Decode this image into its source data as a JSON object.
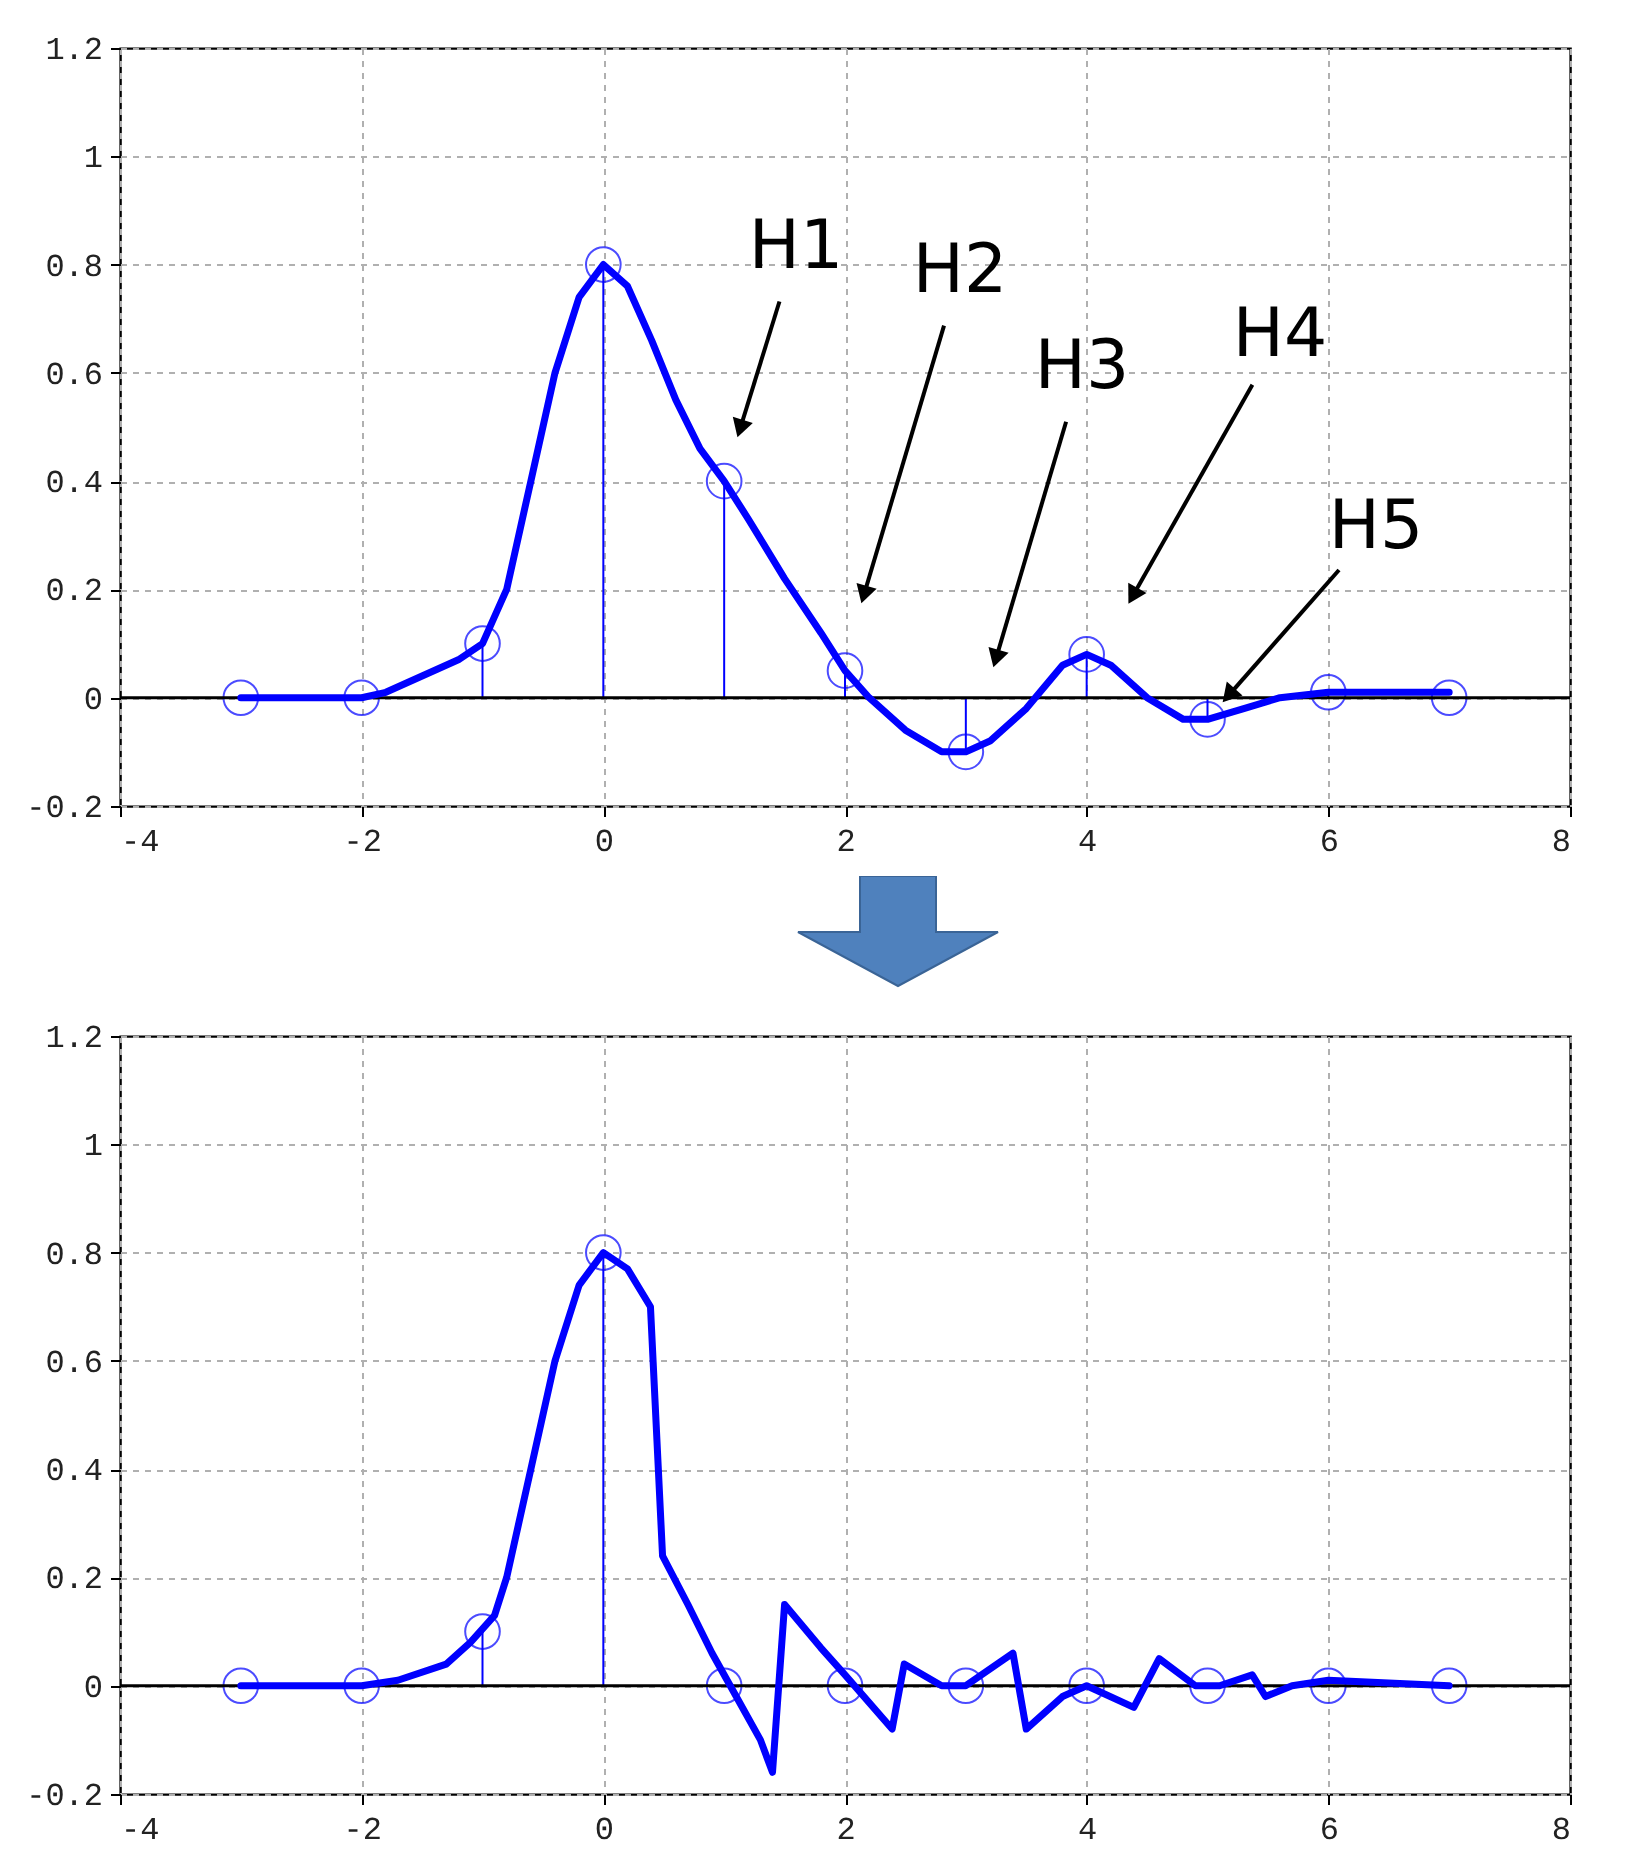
{
  "chart_data": [
    {
      "type": "line",
      "xlim": [
        -4,
        8
      ],
      "ylim": [
        -0.2,
        1.2
      ],
      "xticks": [
        -4,
        -2,
        0,
        2,
        4,
        6,
        8
      ],
      "yticks": [
        -0.2,
        0,
        0.2,
        0.4,
        0.6,
        0.8,
        1,
        1.2
      ],
      "grid": true,
      "ref_lines": [
        {
          "axis": "y",
          "value": 0,
          "color": "#000000"
        }
      ],
      "annotations": [
        "H1",
        "H2",
        "H3",
        "H4",
        {
          "text": "H5",
          "x": 5,
          "y": -0.04
        }
      ],
      "series": [
        {
          "type": "lollipop",
          "color": "#0000ff",
          "marker": "circle",
          "x": [
            -3,
            -2,
            -1,
            0,
            1,
            2,
            3,
            4,
            5,
            6,
            7
          ],
          "values": [
            0,
            0,
            0.1,
            0.8,
            0.4,
            0.05,
            -0.1,
            0.08,
            -0.04,
            0.01,
            0
          ]
        },
        {
          "type": "line",
          "color": "#0000ff",
          "x": [
            -3,
            -2,
            -1.8,
            -1.5,
            -1.2,
            -1,
            -0.8,
            -0.6,
            -0.4,
            -0.2,
            0,
            0.2,
            0.4,
            0.6,
            0.8,
            1,
            1.2,
            1.5,
            1.8,
            2,
            2.2,
            2.5,
            2.8,
            3,
            3.2,
            3.5,
            3.8,
            4,
            4.2,
            4.5,
            4.8,
            5,
            5.3,
            5.6,
            6,
            7
          ],
          "values": [
            0,
            0,
            0.01,
            0.04,
            0.07,
            0.1,
            0.2,
            0.4,
            0.6,
            0.74,
            0.8,
            0.76,
            0.66,
            0.55,
            0.46,
            0.4,
            0.33,
            0.22,
            0.12,
            0.05,
            0,
            -0.06,
            -0.1,
            -0.1,
            -0.08,
            -0.02,
            0.06,
            0.08,
            0.06,
            0,
            -0.04,
            -0.04,
            -0.02,
            0,
            0.01,
            0.01
          ]
        }
      ]
    },
    {
      "type": "line",
      "xlim": [
        -4,
        8
      ],
      "ylim": [
        -0.2,
        1.2
      ],
      "xticks": [
        -4,
        -2,
        0,
        2,
        4,
        6,
        8
      ],
      "yticks": [
        -0.2,
        0,
        0.2,
        0.4,
        0.6,
        0.8,
        1,
        1.2
      ],
      "grid": true,
      "ref_lines": [
        {
          "axis": "y",
          "value": 0,
          "color": "#000000"
        }
      ],
      "series": [
        {
          "type": "lollipop",
          "color": "#0000ff",
          "marker": "circle",
          "x": [
            -3,
            -2,
            -1,
            0,
            1,
            2,
            3,
            4,
            5,
            6,
            7
          ],
          "values": [
            0,
            0,
            0.1,
            0.8,
            0,
            0,
            0,
            0,
            0,
            0,
            0
          ]
        },
        {
          "type": "line",
          "color": "#0000ff",
          "x": [
            -3,
            -2,
            -1.7,
            -1.3,
            -1.1,
            -0.9,
            -0.8,
            -0.6,
            -0.4,
            -0.2,
            0,
            0.2,
            0.39,
            0.49,
            0.7,
            0.9,
            1.1,
            1.3,
            1.4,
            1.5,
            1.8,
            2,
            2.39,
            2.49,
            2.8,
            3,
            3.39,
            3.5,
            3.8,
            4,
            4.39,
            4.6,
            4.9,
            5.1,
            5.37,
            5.48,
            5.7,
            6,
            7
          ],
          "values": [
            0,
            0,
            0.01,
            0.04,
            0.08,
            0.13,
            0.2,
            0.4,
            0.6,
            0.74,
            0.8,
            0.77,
            0.7,
            0.24,
            0.15,
            0.06,
            -0.02,
            -0.1,
            -0.16,
            0.15,
            0.07,
            0.02,
            -0.08,
            0.04,
            0,
            0,
            0.06,
            -0.08,
            -0.02,
            0,
            -0.04,
            0.05,
            0,
            0,
            0.02,
            -0.02,
            0,
            0.01,
            0
          ]
        }
      ]
    }
  ]
}
